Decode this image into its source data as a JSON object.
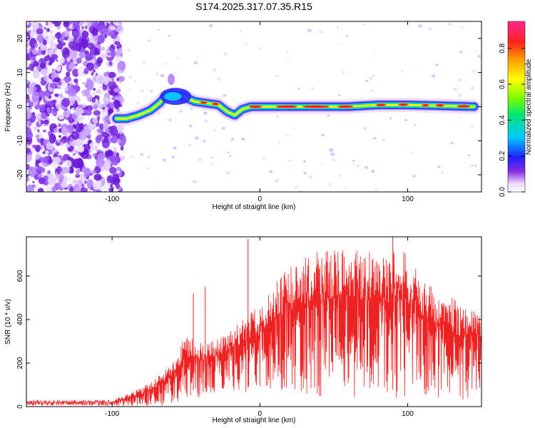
{
  "title": "S174.2025.317.07.35.R15",
  "chart_data": [
    {
      "type": "heatmap",
      "xlabel": "Height of straight line (km)",
      "ylabel": "Frequency (Hz)",
      "xlim": [
        -158,
        150
      ],
      "ylim": [
        -25,
        25
      ],
      "xticks": [
        -100,
        0,
        100
      ],
      "yticks": [
        -20,
        -10,
        0,
        10,
        20
      ],
      "colorbar": {
        "label": "Normalized spectral amplitude",
        "range": [
          0.0,
          0.95
        ],
        "ticks": [
          0.0,
          0.2,
          0.4,
          0.6,
          0.8
        ]
      },
      "ridge": [
        {
          "x": -97,
          "f": -3.5
        },
        {
          "x": -90,
          "f": -3.5
        },
        {
          "x": -82,
          "f": -2.5
        },
        {
          "x": -74,
          "f": -1.0
        },
        {
          "x": -68,
          "f": 1.0
        },
        {
          "x": -64,
          "f": 3.0
        },
        {
          "x": -60,
          "f": 3.5
        },
        {
          "x": -52,
          "f": 3.0
        },
        {
          "x": -44,
          "f": 1.5
        },
        {
          "x": -36,
          "f": 1.0
        },
        {
          "x": -28,
          "f": 0.5
        },
        {
          "x": -22,
          "f": -1.5
        },
        {
          "x": -17,
          "f": -2.5
        },
        {
          "x": -12,
          "f": -0.8
        },
        {
          "x": -6,
          "f": 0.0
        },
        {
          "x": 10,
          "f": 0.0
        },
        {
          "x": 40,
          "f": 0.0
        },
        {
          "x": 60,
          "f": 0.0
        },
        {
          "x": 80,
          "f": 0.5
        },
        {
          "x": 100,
          "f": 0.5
        },
        {
          "x": 120,
          "f": 0.3
        },
        {
          "x": 145,
          "f": 0.0
        }
      ],
      "noise_region_x": [
        -158,
        -98
      ]
    },
    {
      "type": "line",
      "xlabel": "Height of straight line (km)",
      "ylabel": "SNR (10 * v/v)",
      "xlim": [
        -158,
        150
      ],
      "ylim": [
        0,
        780
      ],
      "xticks": [
        -100,
        0,
        100
      ],
      "yticks": [
        0,
        200,
        400,
        600
      ],
      "series": [
        {
          "color": "#ee2222",
          "envelope": [
            {
              "x": -158,
              "lo": 0,
              "hi": 30
            },
            {
              "x": -100,
              "lo": 0,
              "hi": 30
            },
            {
              "x": -85,
              "lo": 0,
              "hi": 70
            },
            {
              "x": -70,
              "lo": 0,
              "hi": 130
            },
            {
              "x": -60,
              "lo": 10,
              "hi": 200
            },
            {
              "x": -50,
              "lo": 30,
              "hi": 330
            },
            {
              "x": -40,
              "lo": 40,
              "hi": 300
            },
            {
              "x": -30,
              "lo": 60,
              "hi": 310
            },
            {
              "x": -20,
              "lo": 80,
              "hi": 360
            },
            {
              "x": -10,
              "lo": 60,
              "hi": 420
            },
            {
              "x": 0,
              "lo": 60,
              "hi": 470
            },
            {
              "x": 10,
              "lo": 60,
              "hi": 560
            },
            {
              "x": 20,
              "lo": 60,
              "hi": 650
            },
            {
              "x": 40,
              "lo": 40,
              "hi": 720
            },
            {
              "x": 60,
              "lo": 40,
              "hi": 720
            },
            {
              "x": 80,
              "lo": 40,
              "hi": 710
            },
            {
              "x": 100,
              "lo": 40,
              "hi": 720
            },
            {
              "x": 110,
              "lo": 40,
              "hi": 580
            },
            {
              "x": 120,
              "lo": 40,
              "hi": 530
            },
            {
              "x": 130,
              "lo": 40,
              "hi": 500
            },
            {
              "x": 140,
              "lo": 20,
              "hi": 460
            },
            {
              "x": 150,
              "lo": 20,
              "hi": 440
            }
          ],
          "spikes": [
            {
              "x": -8,
              "y": 770
            },
            {
              "x": -45,
              "y": 520
            },
            {
              "x": -37,
              "y": 550
            },
            {
              "x": 90,
              "y": 780
            }
          ]
        }
      ]
    }
  ]
}
